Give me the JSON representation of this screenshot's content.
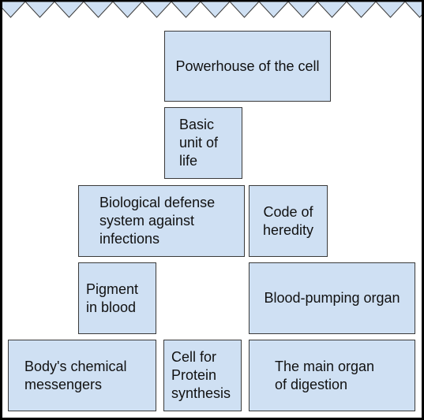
{
  "colors": {
    "card_fill": "#cfe0f3",
    "card_border": "#3a3a3a",
    "outer_frame": "#000000",
    "zigzag_fill": "#cfe0f3"
  },
  "cards": {
    "powerhouse": "Powerhouse of the cell",
    "basic_unit": "Basic\nunit of\nlife",
    "defense": "Biological defense\nsystem against\ninfections",
    "heredity": "Code of\nheredity",
    "pigment": "Pigment\nin blood",
    "blood_pumping": "Blood-pumping organ",
    "messengers": "Body's chemical\nmessengers",
    "protein": "Cell for\nProtein\nsynthesis",
    "digestion": "The main organ\nof digestion"
  }
}
